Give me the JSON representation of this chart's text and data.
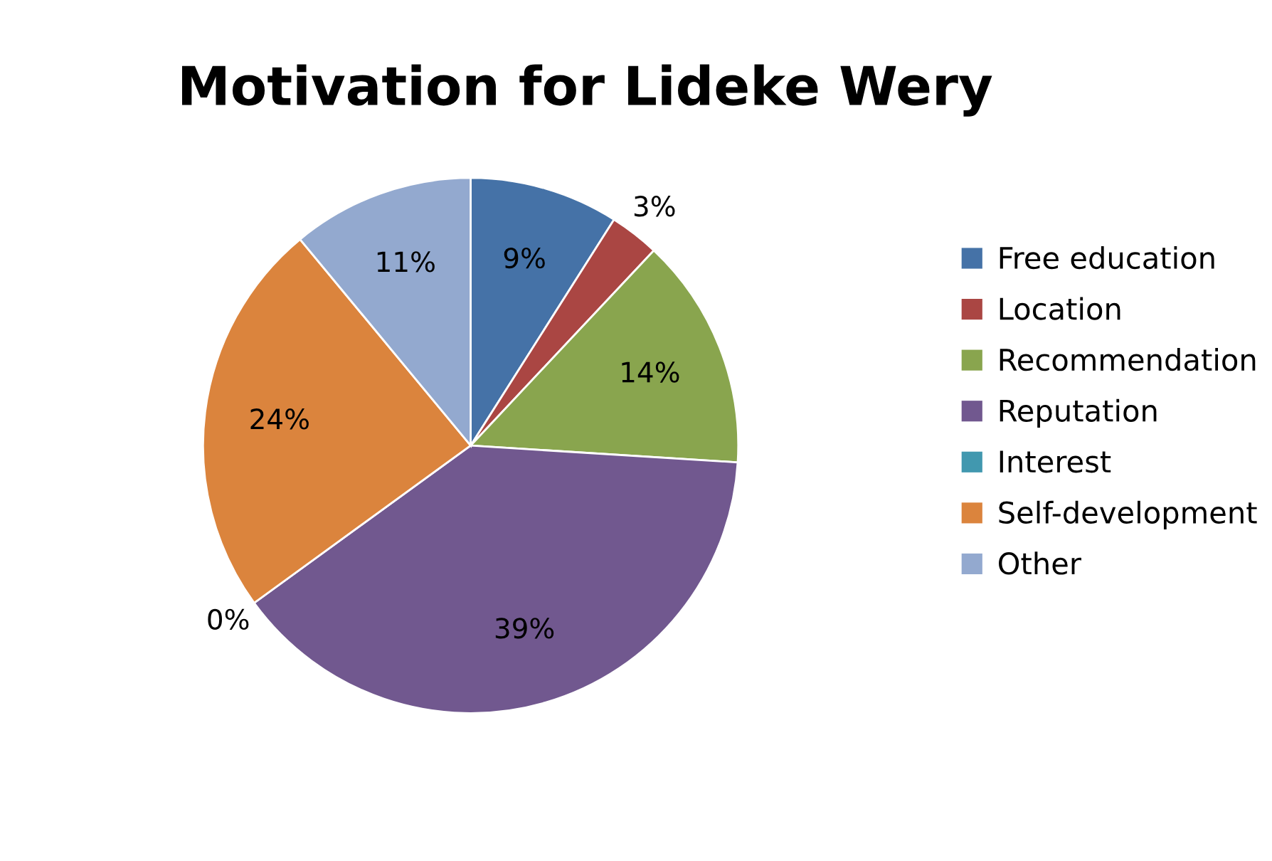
{
  "chart_data": {
    "type": "pie",
    "title": "Motivation for Lideke Wery",
    "categories": [
      "Free education",
      "Location",
      "Recommendation",
      "Reputation",
      "Interest",
      "Self-development",
      "Other"
    ],
    "values": [
      9,
      3,
      14,
      39,
      0,
      24,
      11
    ],
    "colors": [
      "#4572a7",
      "#aa4643",
      "#89a54e",
      "#71588f",
      "#4198af",
      "#db843d",
      "#93a9cf"
    ],
    "value_labels": [
      "9%",
      "3%",
      "14%",
      "39%",
      "0%",
      "24%",
      "11%"
    ],
    "legend": "right"
  }
}
